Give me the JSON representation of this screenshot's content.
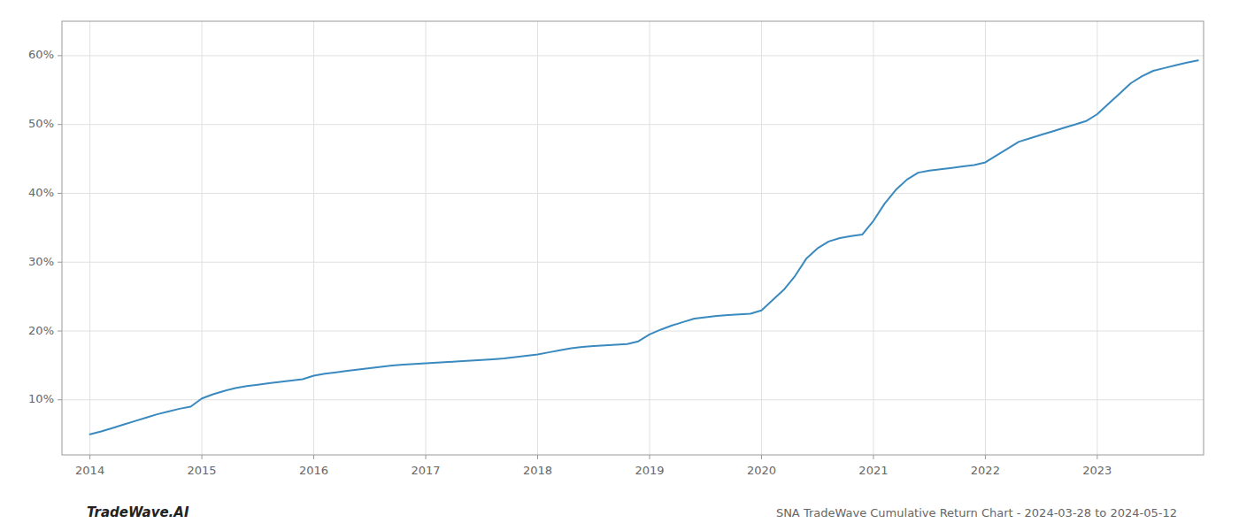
{
  "chart_data": {
    "type": "line",
    "annotations": [
      "TradeWave.AI",
      "SNA TradeWave Cumulative Return Chart - 2024-03-28 to 2024-05-12"
    ],
    "color": "#3a8abf",
    "grid": true,
    "x": [
      2014.0,
      2014.1,
      2014.2,
      2014.3,
      2014.4,
      2014.5,
      2014.6,
      2014.7,
      2014.8,
      2014.9,
      2015.0,
      2015.1,
      2015.2,
      2015.3,
      2015.4,
      2015.5,
      2015.6,
      2015.7,
      2015.8,
      2015.9,
      2016.0,
      2016.1,
      2016.2,
      2016.3,
      2016.4,
      2016.5,
      2016.6,
      2016.7,
      2016.8,
      2016.9,
      2017.0,
      2017.1,
      2017.2,
      2017.3,
      2017.4,
      2017.5,
      2017.6,
      2017.7,
      2017.8,
      2017.9,
      2018.0,
      2018.1,
      2018.2,
      2018.3,
      2018.4,
      2018.5,
      2018.6,
      2018.7,
      2018.8,
      2018.9,
      2019.0,
      2019.1,
      2019.2,
      2019.3,
      2019.4,
      2019.5,
      2019.6,
      2019.7,
      2019.8,
      2019.9,
      2020.0,
      2020.1,
      2020.2,
      2020.3,
      2020.4,
      2020.5,
      2020.6,
      2020.7,
      2020.8,
      2020.9,
      2021.0,
      2021.1,
      2021.2,
      2021.3,
      2021.4,
      2021.5,
      2021.6,
      2021.7,
      2021.8,
      2021.9,
      2022.0,
      2022.1,
      2022.2,
      2022.3,
      2022.4,
      2022.5,
      2022.6,
      2022.7,
      2022.8,
      2022.9,
      2023.0,
      2023.1,
      2023.2,
      2023.3,
      2023.4,
      2023.5,
      2023.6,
      2023.7,
      2023.8,
      2023.9
    ],
    "values": [
      5.0,
      5.4,
      5.9,
      6.4,
      6.9,
      7.4,
      7.9,
      8.3,
      8.7,
      9.0,
      10.2,
      10.8,
      11.3,
      11.7,
      12.0,
      12.2,
      12.4,
      12.6,
      12.8,
      13.0,
      13.5,
      13.8,
      14.0,
      14.2,
      14.4,
      14.6,
      14.8,
      15.0,
      15.1,
      15.2,
      15.3,
      15.4,
      15.5,
      15.6,
      15.7,
      15.8,
      15.9,
      16.0,
      16.2,
      16.4,
      16.6,
      16.9,
      17.2,
      17.5,
      17.7,
      17.8,
      17.9,
      18.0,
      18.1,
      18.5,
      19.5,
      20.2,
      20.8,
      21.3,
      21.8,
      22.0,
      22.2,
      22.3,
      22.4,
      22.5,
      23.0,
      24.5,
      26.0,
      28.0,
      30.5,
      32.0,
      33.0,
      33.5,
      33.8,
      34.0,
      36.0,
      38.5,
      40.5,
      42.0,
      43.0,
      43.3,
      43.5,
      43.7,
      43.9,
      44.1,
      44.5,
      45.5,
      46.5,
      47.5,
      48.0,
      48.5,
      49.0,
      49.5,
      50.0,
      50.5,
      51.5,
      53.0,
      54.5,
      56.0,
      57.0,
      57.8,
      58.2,
      58.6,
      59.0,
      59.3
    ],
    "xlim": [
      2013.75,
      2023.95
    ],
    "ylim": [
      2,
      65
    ],
    "xticks": [
      2014,
      2015,
      2016,
      2017,
      2018,
      2019,
      2020,
      2021,
      2022,
      2023
    ],
    "yticks": [
      {
        "value": 10,
        "label": "10%"
      },
      {
        "value": 20,
        "label": "20%"
      },
      {
        "value": 30,
        "label": "30%"
      },
      {
        "value": 40,
        "label": "40%"
      },
      {
        "value": 50,
        "label": "50%"
      },
      {
        "value": 60,
        "label": "60%"
      }
    ]
  }
}
